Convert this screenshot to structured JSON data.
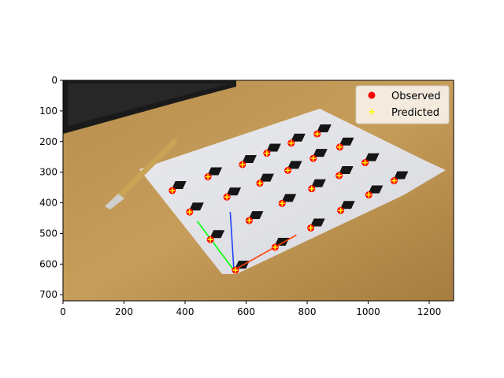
{
  "chart_data": {
    "type": "scatter",
    "title": "",
    "xlabel": "",
    "ylabel": "",
    "xlim": [
      0,
      1280
    ],
    "ylim": [
      720,
      0
    ],
    "x_ticks": [
      "0",
      "200",
      "400",
      "600",
      "800",
      "1000",
      "1200"
    ],
    "y_ticks": [
      "0",
      "100",
      "200",
      "300",
      "400",
      "500",
      "600",
      "700"
    ],
    "grid": false,
    "legend_position": "top-right",
    "background": "photo of a printed ArUco marker calibration board on a wooden desk next to a keyboard and a pen",
    "series": [
      {
        "name": "Observed",
        "marker": "circle",
        "color": "#ff0000",
        "points": [
          [
            833,
            175
          ],
          [
            907,
            218
          ],
          [
            990,
            269
          ],
          [
            1085,
            328
          ],
          [
            748,
            205
          ],
          [
            820,
            255
          ],
          [
            905,
            311
          ],
          [
            1002,
            374
          ],
          [
            668,
            238
          ],
          [
            737,
            294
          ],
          [
            815,
            354
          ],
          [
            910,
            425
          ],
          [
            588,
            275
          ],
          [
            645,
            336
          ],
          [
            718,
            402
          ],
          [
            812,
            482
          ],
          [
            358,
            360
          ],
          [
            475,
            315
          ],
          [
            537,
            381
          ],
          [
            415,
            430
          ],
          [
            610,
            458
          ],
          [
            483,
            520
          ],
          [
            565,
            620
          ],
          [
            695,
            545
          ]
        ]
      },
      {
        "name": "Predicted",
        "marker": "plus",
        "color": "#ffff00",
        "points": [
          [
            833,
            175
          ],
          [
            907,
            218
          ],
          [
            990,
            269
          ],
          [
            1085,
            328
          ],
          [
            748,
            205
          ],
          [
            820,
            255
          ],
          [
            905,
            311
          ],
          [
            1002,
            374
          ],
          [
            668,
            238
          ],
          [
            737,
            294
          ],
          [
            815,
            354
          ],
          [
            910,
            425
          ],
          [
            588,
            275
          ],
          [
            645,
            336
          ],
          [
            718,
            402
          ],
          [
            812,
            482
          ],
          [
            358,
            360
          ],
          [
            475,
            315
          ],
          [
            537,
            381
          ],
          [
            415,
            430
          ],
          [
            610,
            458
          ],
          [
            483,
            520
          ],
          [
            565,
            620
          ],
          [
            695,
            545
          ]
        ]
      }
    ],
    "axes_overlay": {
      "origin": [
        560,
        620
      ],
      "x_axis_end": [
        765,
        505
      ],
      "y_axis_end": [
        440,
        460
      ],
      "z_axis_end": [
        548,
        430
      ],
      "colors": {
        "x": "#ff3c00",
        "y": "#00ff00",
        "z": "#2040ff"
      }
    }
  }
}
